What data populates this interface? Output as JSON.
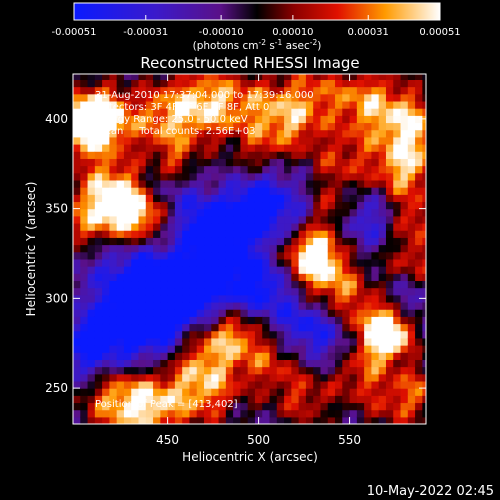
{
  "chart_data": {
    "type": "heatmap",
    "title": "Reconstructed RHESSI Image",
    "xlabel": "Heliocentric X (arcsec)",
    "ylabel": "Heliocentric Y (arcsec)",
    "xlim": [
      398,
      592
    ],
    "ylim": [
      230,
      425
    ],
    "x_ticks": [
      "450",
      "500",
      "550"
    ],
    "y_ticks": [
      "250",
      "300",
      "350",
      "400"
    ],
    "x_tick_values": [
      450,
      500,
      550
    ],
    "y_tick_values": [
      250,
      300,
      350,
      400
    ],
    "colorbar": {
      "label_parts": [
        "(photons cm",
        "-2",
        " s",
        "-1",
        " asec",
        "-2",
        ")"
      ],
      "range": [
        -0.00051,
        0.00051
      ],
      "tick_labels": [
        "-0.00051",
        "-0.00031",
        "-0.00010",
        "0.00010",
        "0.00031",
        "0.00051"
      ],
      "tick_values": [
        -0.00051,
        -0.00031,
        -0.0001,
        0.0001,
        0.00031,
        0.00051
      ]
    },
    "annotations": {
      "time_range": "31-Aug-2010 17:37:04.000 to 17:39:16.000",
      "detectors": "Detectors: 3F 4F 5F 6F 7F 8F, Att 0",
      "energy_range": "Energy Range: 25.0 - 50.0 keV",
      "method_counts": "Clean     Total counts: 2.56E+03",
      "peak": "Position of Peak = [413,402]"
    },
    "peak_position": [
      413,
      402
    ]
  },
  "timestamp": "10-May-2022 02:45"
}
